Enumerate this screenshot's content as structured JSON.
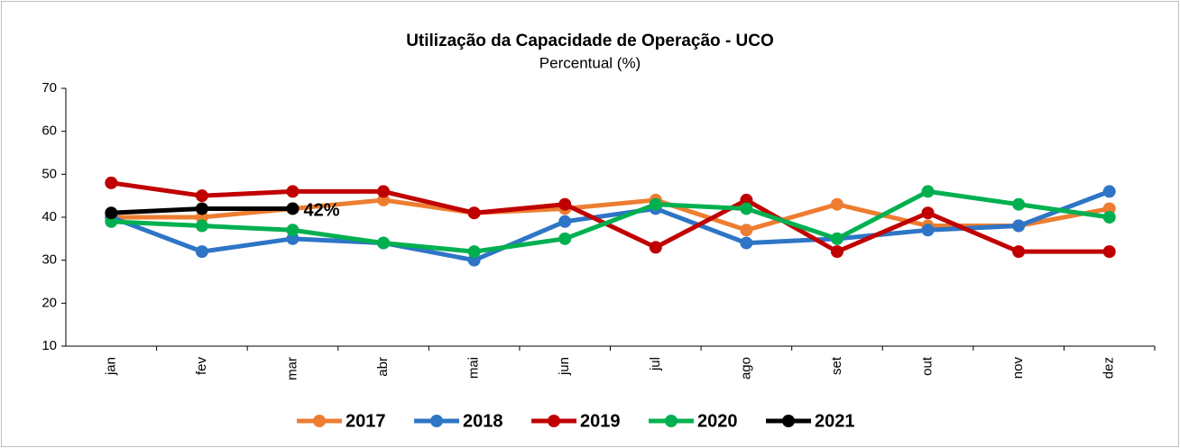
{
  "chart_data": {
    "type": "line",
    "title": "Utilização da Capacidade de Operação - UCO",
    "subtitle": "Percentual (%)",
    "categories": [
      "jan",
      "fev",
      "mar",
      "abr",
      "mai",
      "jun",
      "jul",
      "ago",
      "set",
      "out",
      "nov",
      "dez"
    ],
    "series": [
      {
        "name": "2017",
        "color": "#ed7d31",
        "values": [
          40,
          40,
          42,
          44,
          41,
          42,
          44,
          37,
          43,
          38,
          38,
          42
        ]
      },
      {
        "name": "2018",
        "color": "#2e75c6",
        "values": [
          40,
          32,
          35,
          34,
          30,
          39,
          42,
          34,
          35,
          37,
          38,
          46
        ]
      },
      {
        "name": "2019",
        "color": "#c00000",
        "values": [
          48,
          45,
          46,
          46,
          41,
          43,
          33,
          44,
          32,
          41,
          32,
          32
        ]
      },
      {
        "name": "2020",
        "color": "#00b050",
        "values": [
          39,
          38,
          37,
          34,
          32,
          35,
          43,
          42,
          35,
          46,
          43,
          40
        ]
      },
      {
        "name": "2021",
        "color": "#000000",
        "values": [
          41,
          42,
          42,
          null,
          null,
          null,
          null,
          null,
          null,
          null,
          null,
          null
        ],
        "value_labels": [
          null,
          null,
          "42%",
          null,
          null,
          null,
          null,
          null,
          null,
          null,
          null,
          null
        ]
      }
    ],
    "ylim": [
      10,
      70
    ],
    "yticks": [
      10,
      20,
      30,
      40,
      50,
      60,
      70
    ],
    "grid": false,
    "legend": "bottom"
  }
}
